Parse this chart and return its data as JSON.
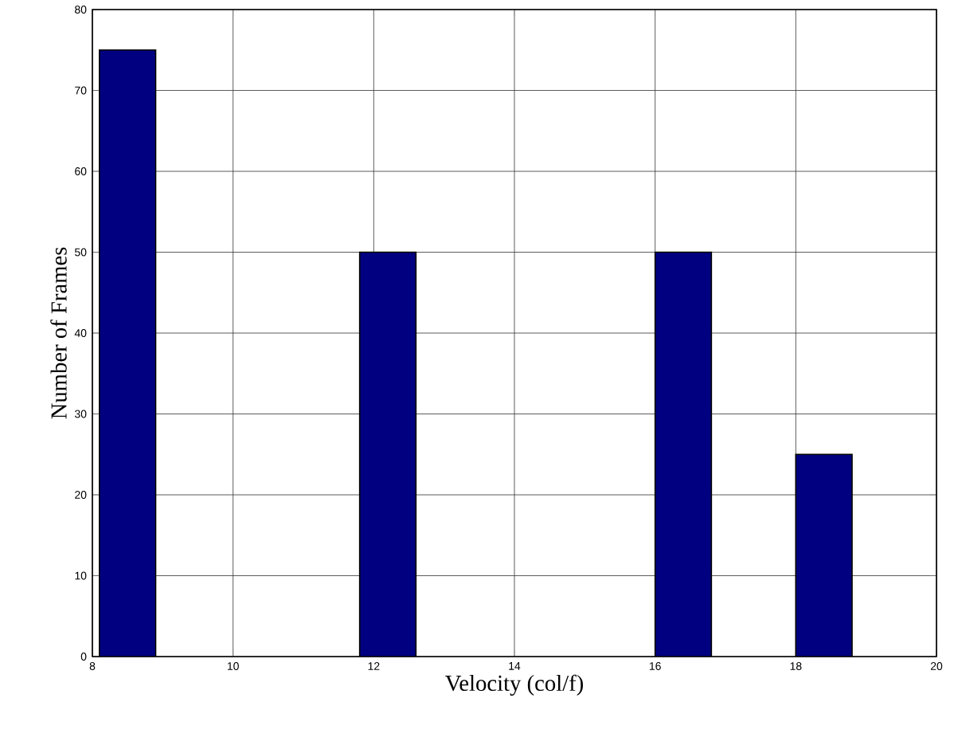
{
  "chart_data": {
    "type": "histogram",
    "xlabel": "Velocity (col/f)",
    "ylabel": "Number of Frames",
    "bins": [
      8.1,
      8.9,
      11.8,
      12.6,
      16.0,
      16.8,
      18.0,
      18.8
    ],
    "values": [
      75,
      0,
      50,
      0,
      50,
      0,
      25
    ],
    "color": "#000080",
    "xlim": [
      8,
      20
    ],
    "xticks": [
      8,
      10,
      12,
      14,
      16,
      18,
      20
    ],
    "ylim": [
      0,
      80
    ],
    "yticks": [
      0,
      10,
      20,
      30,
      40,
      50,
      60,
      70,
      80
    ],
    "grid": true
  }
}
